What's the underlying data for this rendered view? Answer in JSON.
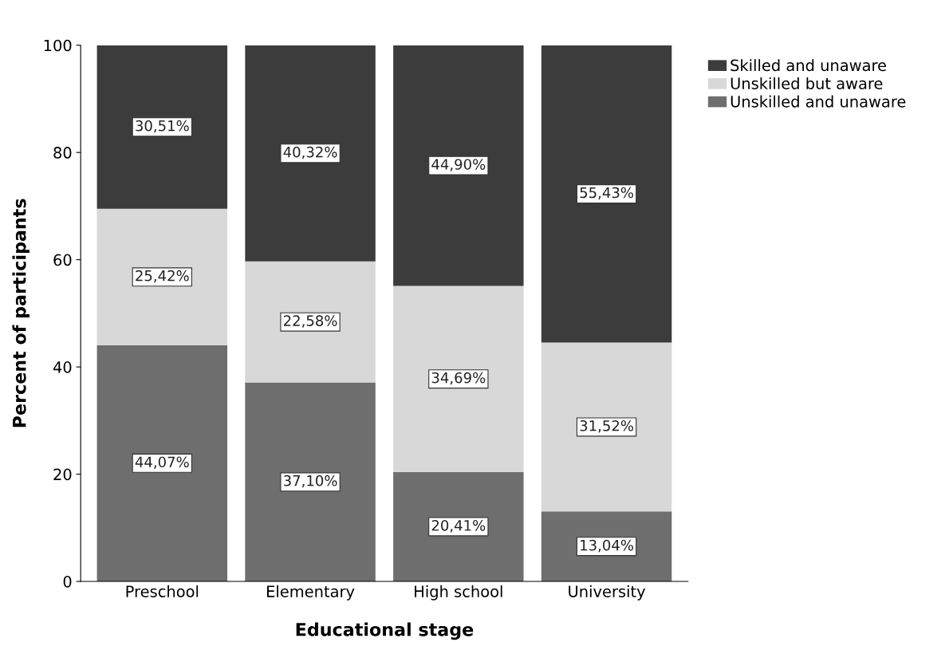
{
  "chart_data": {
    "type": "bar",
    "stacked": true,
    "xlabel": "Educational stage",
    "ylabel": "Percent of participants",
    "categories": [
      "Preschool",
      "Elementary",
      "High school",
      "University"
    ],
    "ylim": [
      0,
      100
    ],
    "yticks": [
      0,
      20,
      40,
      60,
      80,
      100
    ],
    "grid": false,
    "legend": "top right",
    "series": [
      {
        "name": "Unskilled and unaware",
        "color": "#6e6e6e",
        "values": [
          44.07,
          37.1,
          20.41,
          13.04
        ],
        "value_labels": [
          "44,07%",
          "37,10%",
          "20,41%",
          "13,04%"
        ]
      },
      {
        "name": "Unskilled but aware",
        "color": "#d8d8d8",
        "values": [
          25.42,
          22.58,
          34.69,
          31.52
        ],
        "value_labels": [
          "25,42%",
          "22,58%",
          "34,69%",
          "31,52%"
        ]
      },
      {
        "name": "Skilled and unaware",
        "color": "#3c3c3c",
        "values": [
          30.51,
          40.32,
          44.9,
          55.43
        ],
        "value_labels": [
          "30,51%",
          "40,32%",
          "44,90%",
          "55,43%"
        ]
      }
    ]
  }
}
